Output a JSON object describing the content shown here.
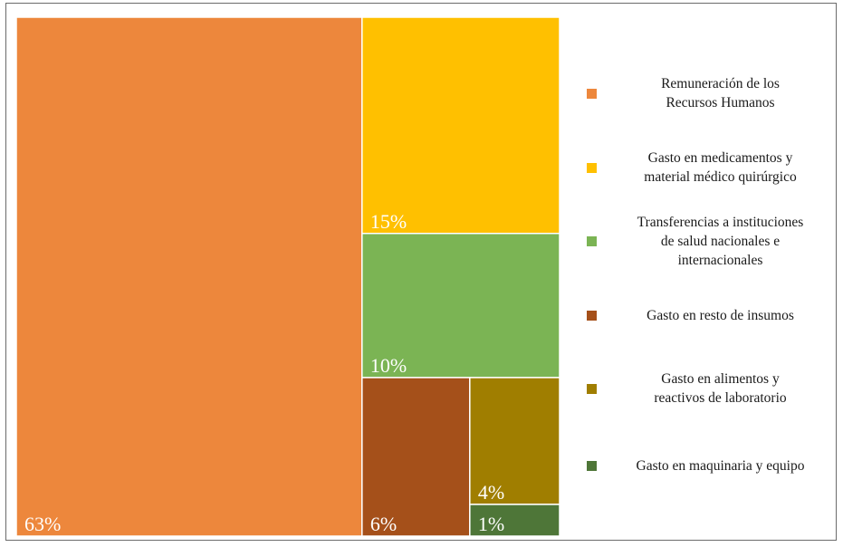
{
  "chart_data": {
    "type": "treemap",
    "series": [
      {
        "name": "Remuneración de los\nRecursos Humanos",
        "value": 63,
        "label": "63%",
        "color": "#ED873C"
      },
      {
        "name": "Gasto en medicamentos y\nmaterial médico quirúrgico",
        "value": 15,
        "label": "15%",
        "color": "#FFC000"
      },
      {
        "name": "Transferencias a instituciones\nde salud nacionales e\ninternacionales",
        "value": 10,
        "label": "10%",
        "color": "#7BB454"
      },
      {
        "name": "Gasto en resto de insumos",
        "value": 6,
        "label": "6%",
        "color": "#A5501A"
      },
      {
        "name": "Gasto en alimentos y\nreactivos de laboratorio",
        "value": 4,
        "label": "4%",
        "color": "#A07E00"
      },
      {
        "name": "Gasto en maquinaria y equipo",
        "value": 1,
        "label": "1%",
        "color": "#4E7638"
      }
    ],
    "legend_position": "right"
  }
}
